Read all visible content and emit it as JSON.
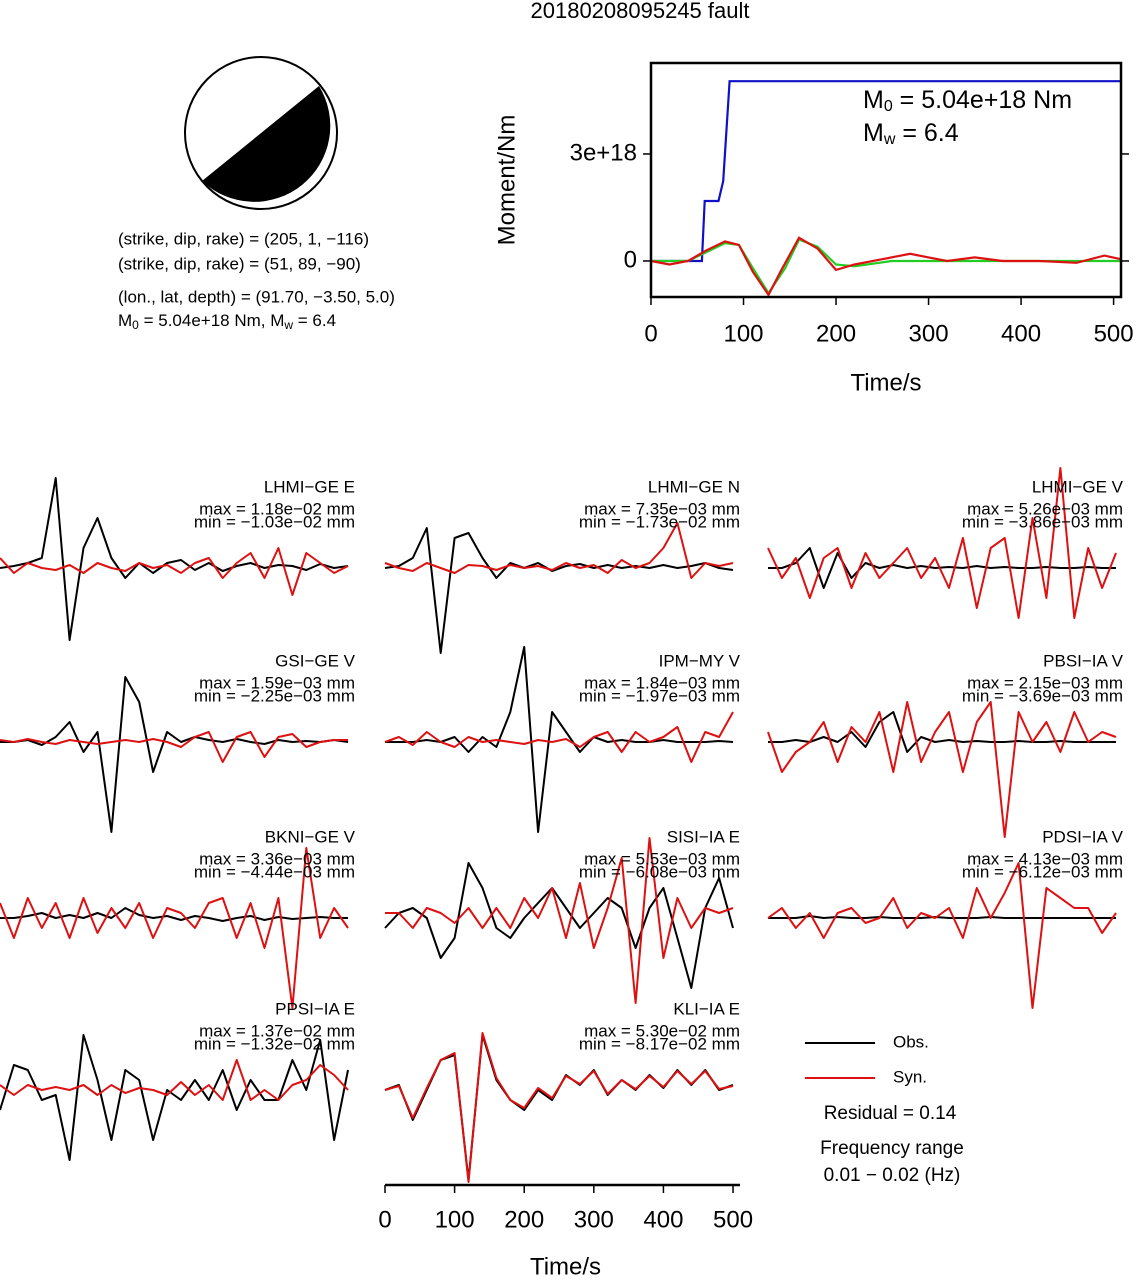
{
  "title": "20180208095245 fault",
  "focal": {
    "lines": [
      "(strike, dip, rake) = (205, 1, −116)",
      "(strike, dip, rake) = (51, 89, −90)",
      "(lon., lat, depth) = (91.70, −3.50, 5.0)"
    ],
    "moment": {
      "m": "M",
      "m_sub": "0",
      "m_text": " = 5.04e+18 Nm, M",
      "w_sub": "w",
      "w_text": " = 6.4"
    }
  },
  "residual": "Residual = 0.14",
  "frequency_label": "Frequency range",
  "frequency_range": "0.01 − 0.02 (Hz)",
  "chart_data": [
    {
      "type": "line",
      "xlabel": "Time/s",
      "ylabel": "Moment/Nm",
      "xlim": [
        0,
        508
      ],
      "ylim": [
        -1.01e+18,
        5.55e+18
      ],
      "xticks": [
        0,
        100,
        200,
        300,
        400,
        500
      ],
      "yticks": [
        0,
        {
          "value": 3e+18,
          "label": "3e+18"
        }
      ],
      "annotations": [
        {
          "base": "M",
          "sub": "0",
          "text": " = 5.04e+18 Nm"
        },
        {
          "base": "M",
          "sub": "w",
          "text": " = 6.4"
        }
      ],
      "series": [
        {
          "color": "#1010c8",
          "x": [
            0,
            55,
            58,
            73,
            78,
            85,
            508
          ],
          "values": [
            0,
            0,
            1.68e+18,
            1.68e+18,
            2.24e+18,
            5.04e+18,
            5.04e+18
          ]
        },
        {
          "color": "#22cc22",
          "x": [
            0,
            40,
            60,
            80,
            95,
            110,
            127,
            145,
            160,
            180,
            200,
            220,
            260,
            508
          ],
          "values": [
            0,
            0,
            2.5e+17,
            5e+17,
            4.5e+17,
            -2e+17,
            -9e+17,
            -2e+17,
            6e+17,
            4e+17,
            -1e+17,
            -1.5e+17,
            0,
            0
          ]
        },
        {
          "color": "#dd1111",
          "x": [
            0,
            20,
            40,
            60,
            80,
            95,
            110,
            127,
            140,
            160,
            180,
            200,
            220,
            250,
            280,
            300,
            320,
            350,
            380,
            420,
            460,
            490,
            508
          ],
          "values": [
            0,
            -1e+17,
            0,
            3e+17,
            5.5e+17,
            4.5e+17,
            -3e+17,
            -9.5e+17,
            -3e+17,
            6.5e+17,
            3.5e+17,
            -2.5e+17,
            -1e+17,
            5e+16,
            2e+17,
            1e+17,
            0,
            1e+17,
            0,
            0,
            -5e+16,
            1.5e+17,
            5e+16
          ]
        }
      ]
    },
    {
      "type": "waveform",
      "xlabel": "Time/s",
      "xlim": [
        0,
        510
      ],
      "xticks": [
        0,
        100,
        200,
        300,
        400,
        500
      ],
      "x": [
        0,
        20,
        40,
        60,
        80,
        100,
        120,
        140,
        160,
        180,
        200,
        220,
        240,
        260,
        280,
        300,
        320,
        340,
        360,
        380,
        400,
        420,
        440,
        460,
        480,
        500
      ],
      "legend": [
        {
          "name": "Obs.",
          "color": "#000000"
        },
        {
          "name": "Syn.",
          "color": "#dd1111"
        }
      ],
      "panels": [
        {
          "name": "LHMI−GE E",
          "max": "max = 1.18e−02 mm",
          "min": "min = −1.03e−02 mm",
          "obs": [
            0,
            0.02,
            0.05,
            0.1,
            0.9,
            -0.72,
            0.2,
            0.5,
            0.1,
            -0.1,
            0.05,
            -0.05,
            0.05,
            0.08,
            -0.02,
            0.05,
            -0.03,
            0.02,
            0.05,
            0,
            0.03,
            0.02,
            -0.02,
            0.04,
            0,
            0.02
          ],
          "syn": [
            0.1,
            -0.05,
            0.05,
            0,
            -0.02,
            0.03,
            -0.05,
            0.05,
            0,
            -0.03,
            0.05,
            0,
            0.03,
            -0.05,
            0.05,
            0.1,
            -0.1,
            0.05,
            0.15,
            -0.1,
            0.2,
            -0.27,
            0.15,
            0.05,
            -0.05,
            0.02
          ]
        },
        {
          "name": "LHMI−GE N",
          "max": "max = 7.35e−03 mm",
          "min": "min = −1.73e−02 mm",
          "obs": [
            0,
            0.02,
            0.1,
            0.4,
            -0.85,
            0.3,
            0.35,
            0.1,
            -0.1,
            0.05,
            0,
            0.05,
            -0.03,
            0.02,
            0.04,
            0,
            0.03,
            0,
            0.02,
            0,
            0.03,
            0,
            0.02,
            0.05,
            0,
            -0.02
          ],
          "syn": [
            0.05,
            0,
            -0.03,
            0.05,
            0,
            -0.05,
            0.03,
            0.02,
            -0.02,
            0.03,
            0,
            0.02,
            -0.02,
            0.05,
            0,
            0.03,
            -0.05,
            0.08,
            0,
            0.05,
            0.2,
            0.45,
            -0.1,
            0.05,
            0.02,
            0.05
          ]
        },
        {
          "name": "LHMI−GE V",
          "max": "max = 5.26e−03 mm",
          "min": "min = −3.86e−03 mm",
          "obs": [
            0,
            0,
            0.05,
            0.2,
            -0.2,
            0.15,
            -0.1,
            0.05,
            0,
            0.03,
            0,
            0.02,
            0,
            0.01,
            0,
            0.02,
            0,
            0.01,
            0,
            0,
            0.01,
            0,
            0,
            0.01,
            0,
            0
          ],
          "syn": [
            0.2,
            -0.1,
            0.1,
            -0.3,
            0.1,
            0.2,
            -0.2,
            0.15,
            -0.1,
            0.05,
            0.2,
            -0.1,
            0.1,
            -0.2,
            0.3,
            -0.4,
            0.2,
            0.3,
            -0.5,
            0.5,
            -0.3,
            1.0,
            -0.5,
            0.2,
            -0.2,
            0.15
          ]
        },
        {
          "name": "GSI−GE V",
          "max": "max = 1.59e−03 mm",
          "min": "min = −2.25e−03 mm",
          "obs": [
            0,
            0,
            0.02,
            -0.03,
            0.05,
            0.2,
            -0.1,
            0.1,
            -0.9,
            0.65,
            0.4,
            -0.3,
            0.1,
            0,
            0.05,
            0.02,
            0,
            0.03,
            0,
            -0.02,
            0.02,
            0,
            0.01,
            0,
            0.02,
            0
          ],
          "syn": [
            0.02,
            0,
            0.03,
            0,
            -0.02,
            0.02,
            0,
            -0.02,
            0,
            0.02,
            0,
            0.03,
            0,
            -0.05,
            0.05,
            0.1,
            -0.2,
            0.05,
            0.1,
            -0.15,
            0.05,
            0.08,
            -0.05,
            0,
            0.02,
            0.02
          ]
        },
        {
          "name": "IPM−MY V",
          "max": "max = 1.84e−03 mm",
          "min": "min = −1.97e−03 mm",
          "obs": [
            0,
            0,
            0,
            0.02,
            0,
            0.05,
            -0.1,
            0.05,
            -0.05,
            0.3,
            0.95,
            -0.9,
            0.3,
            0.1,
            -0.1,
            0.05,
            0,
            0.02,
            0,
            0,
            0.02,
            0,
            0,
            0,
            0.01,
            0
          ],
          "syn": [
            0,
            0.05,
            -0.03,
            0.1,
            0,
            -0.05,
            0.05,
            0,
            0.02,
            0,
            -0.02,
            0.02,
            0,
            0.03,
            -0.05,
            0.05,
            0.1,
            -0.1,
            0.1,
            0,
            0.05,
            0.15,
            -0.2,
            0.1,
            0.05,
            0.3
          ]
        },
        {
          "name": "PBSI−IA V",
          "max": "max = 2.15e−03 mm",
          "min": "min = −3.69e−03 mm",
          "obs": [
            0,
            0,
            0.02,
            0,
            0.05,
            0,
            0.1,
            -0.05,
            0.2,
            0.3,
            -0.1,
            0.05,
            0,
            0.02,
            0,
            0.01,
            0,
            0,
            0.01,
            0,
            0,
            0.01,
            0,
            0,
            0,
            0
          ],
          "syn": [
            0.1,
            -0.3,
            -0.1,
            0,
            0.2,
            -0.2,
            0.15,
            0,
            0.3,
            -0.3,
            0.4,
            -0.2,
            0.1,
            0.3,
            -0.3,
            0.2,
            0.4,
            -0.95,
            0.3,
            0,
            0.2,
            -0.1,
            0.3,
            0,
            0.1,
            0.05
          ]
        },
        {
          "name": "BKNI−GE V",
          "max": "max = 3.36e−03 mm",
          "min": "min = −4.44e−03 mm",
          "obs": [
            0,
            0,
            0.02,
            0.05,
            0,
            0.03,
            0,
            0.05,
            0,
            0.1,
            0.03,
            0,
            0.02,
            -0.02,
            0.02,
            0,
            -0.03,
            0,
            0.02,
            -0.02,
            0.01,
            -0.01,
            0,
            0.01,
            0,
            0
          ],
          "syn": [
            0.15,
            -0.2,
            0.2,
            -0.1,
            0.15,
            -0.2,
            0.2,
            -0.15,
            0.1,
            -0.1,
            0.15,
            -0.2,
            0.1,
            0.05,
            -0.1,
            0.15,
            0.2,
            -0.2,
            0.15,
            -0.3,
            0.2,
            -0.9,
            0.7,
            -0.2,
            0.1,
            -0.1
          ]
        },
        {
          "name": "SISI−IA E",
          "max": "max = 5.53e−03 mm",
          "min": "min = −6.08e−03 mm",
          "obs": [
            -0.1,
            0.05,
            0.1,
            0,
            -0.4,
            -0.2,
            0.55,
            0.3,
            -0.1,
            -0.2,
            0,
            0.15,
            0.3,
            0.1,
            -0.1,
            0.05,
            0.2,
            0.1,
            -0.3,
            0.1,
            0.3,
            -0.2,
            -0.7,
            0.1,
            0.4,
            -0.1
          ],
          "syn": [
            0.05,
            0.05,
            -0.1,
            0.1,
            0.05,
            -0.05,
            0.1,
            -0.1,
            0.1,
            -0.1,
            0.2,
            0,
            0.3,
            -0.2,
            0.35,
            -0.3,
            0.1,
            0.6,
            -0.85,
            0.8,
            -0.4,
            0.2,
            -0.1,
            0.1,
            0.05,
            0.1
          ]
        },
        {
          "name": "PDSI−IA V",
          "max": "max = 4.13e−03 mm",
          "min": "min = −6.12e−03 mm",
          "obs": [
            0,
            0,
            0,
            0.02,
            0,
            0.01,
            0,
            0,
            0.01,
            0,
            0,
            0,
            0.01,
            0,
            0,
            0,
            0.01,
            0,
            0,
            0,
            0,
            0,
            0,
            0,
            0,
            0
          ],
          "syn": [
            0,
            0.1,
            -0.1,
            0.05,
            -0.2,
            0.05,
            0.1,
            -0.05,
            0,
            0.2,
            -0.1,
            0.05,
            0,
            0.1,
            -0.2,
            0.3,
            0,
            0.25,
            0.55,
            -0.9,
            0.3,
            0.2,
            0.1,
            0.1,
            -0.15,
            0.05
          ]
        },
        {
          "name": "PPSI−IA E",
          "max": "max = 1.37e−02 mm",
          "min": "min = −1.32e−02 mm",
          "obs": [
            -0.2,
            0.25,
            0.2,
            -0.1,
            -0.05,
            -0.7,
            0.55,
            0.1,
            -0.5,
            0.2,
            0.1,
            -0.5,
            0,
            -0.1,
            0.1,
            -0.1,
            0.2,
            -0.2,
            0.1,
            -0.1,
            -0.1,
            0.3,
            0,
            0.5,
            -0.5,
            0.2
          ],
          "syn": [
            0.05,
            -0.05,
            0.05,
            0,
            0.03,
            0,
            0.05,
            -0.05,
            0.05,
            -0.03,
            0.02,
            0,
            -0.05,
            0.08,
            -0.05,
            0.05,
            -0.1,
            0.3,
            -0.1,
            0,
            -0.1,
            0.05,
            0.1,
            0.25,
            0.15,
            0
          ]
        },
        {
          "name": "KLI−IA E",
          "max": "max = 5.30e−02 mm",
          "min": "min = −8.17e−02 mm",
          "obs": [
            0,
            0.05,
            -0.3,
            0,
            0.3,
            0.35,
            -0.9,
            0.55,
            0.1,
            -0.1,
            -0.2,
            0,
            -0.1,
            0.15,
            0.05,
            0.2,
            -0.05,
            0.1,
            0,
            0.15,
            0.02,
            0.2,
            0.05,
            0.2,
            0,
            0.05
          ],
          "syn": [
            0,
            0.04,
            -0.28,
            0.02,
            0.3,
            0.37,
            -0.92,
            0.57,
            0.12,
            -0.1,
            -0.18,
            0.02,
            -0.08,
            0.14,
            0.06,
            0.19,
            -0.04,
            0.1,
            0.01,
            0.14,
            0.03,
            0.19,
            0.06,
            0.19,
            0.01,
            0.04
          ]
        }
      ]
    }
  ]
}
